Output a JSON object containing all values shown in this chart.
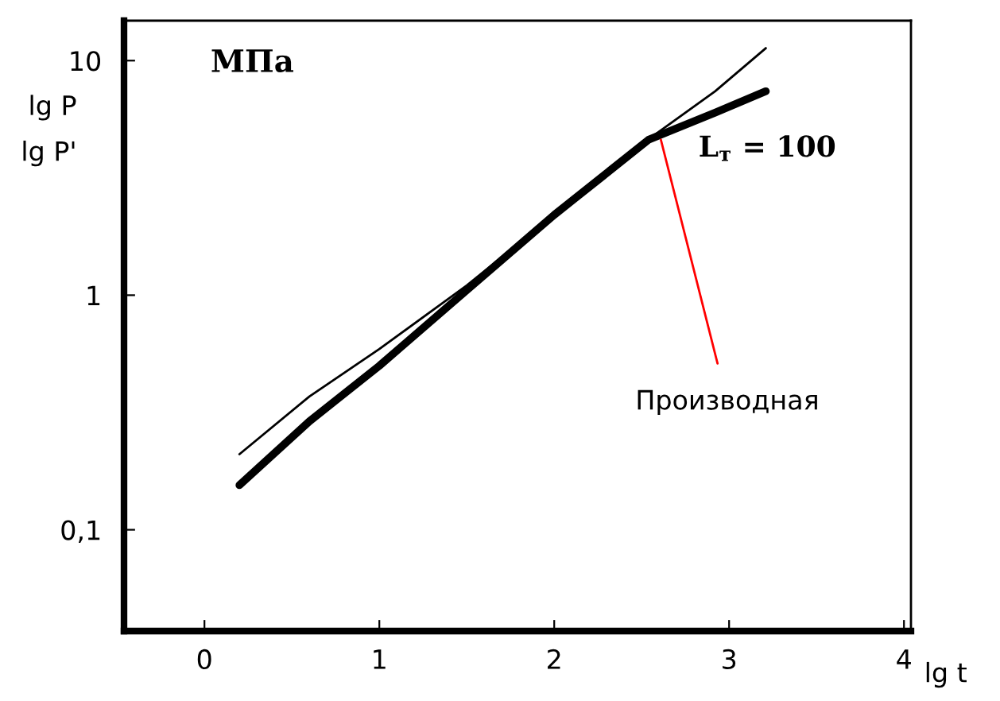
{
  "chart_data": {
    "type": "line",
    "xlabel": "lg t",
    "ylabel": "lg P\nlg P'",
    "log": "y",
    "xlim": [
      -0.46,
      4.04
    ],
    "xticks": [
      0,
      1,
      2,
      3,
      4
    ],
    "ylim": [
      0.037,
      14.8
    ],
    "yticks": [
      {
        "value": 0.1,
        "label": "0,1"
      },
      1,
      10
    ],
    "grid": false,
    "legend": false,
    "marker": "none",
    "line_style": "solid",
    "series": [
      {
        "color": "#000000",
        "x": [
          0.2,
          0.6,
          1,
          1.5,
          2,
          2.5,
          2.92,
          3.21
        ],
        "values": [
          0.21,
          0.37,
          0.59,
          1.1,
          2.2,
          4.4,
          7.4,
          11.3
        ]
      },
      {
        "color": "#000000",
        "x": [
          0.2,
          0.6,
          1,
          1.5,
          2,
          2.54,
          2.92,
          3.21
        ],
        "values": [
          0.155,
          0.29,
          0.5,
          1.05,
          2.2,
          4.6,
          6.0,
          7.4
        ]
      }
    ],
    "annotations": [
      "МПа",
      "L$_{т}$ = 100",
      {
        "text": "Производная",
        "x": 2.61,
        "y": 4.6
      }
    ]
  }
}
